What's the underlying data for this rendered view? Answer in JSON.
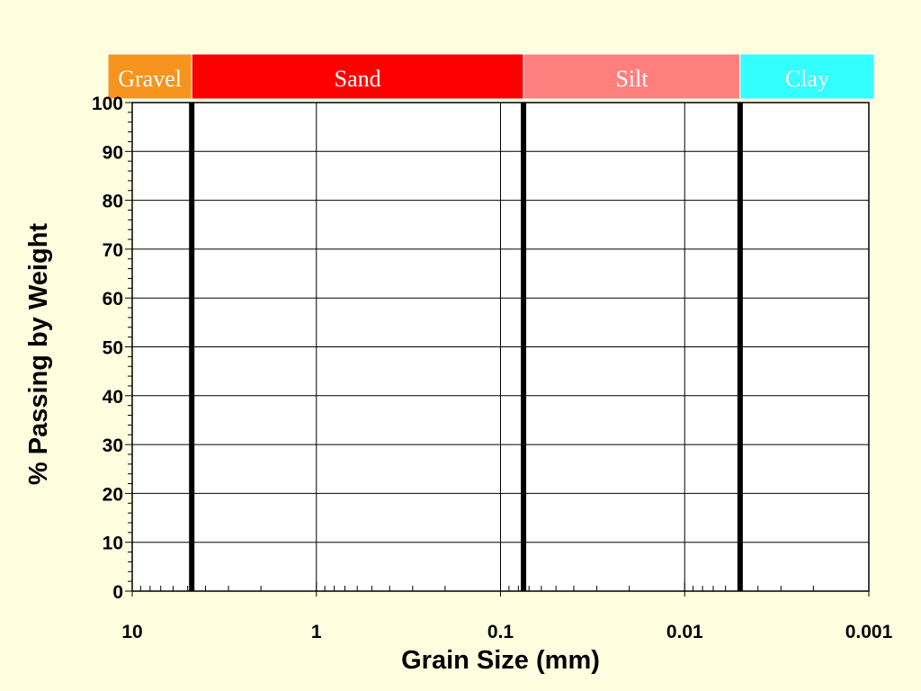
{
  "chart_data": {
    "type": "line",
    "title": "",
    "xlabel": "Grain Size (mm)",
    "ylabel": "% Passing by Weight",
    "x_scale": "log",
    "x_reversed": true,
    "xlim": [
      10,
      0.001
    ],
    "ylim": [
      0,
      100
    ],
    "grid": true,
    "x_ticks": [
      {
        "value": 10,
        "label": "10"
      },
      {
        "value": 1,
        "label": "1"
      },
      {
        "value": 0.1,
        "label": "0.1"
      },
      {
        "value": 0.01,
        "label": "0.01"
      },
      {
        "value": 0.001,
        "label": "0.001"
      }
    ],
    "y_ticks": [
      {
        "value": 0,
        "label": "0"
      },
      {
        "value": 10,
        "label": "10"
      },
      {
        "value": 20,
        "label": "20"
      },
      {
        "value": 30,
        "label": "30"
      },
      {
        "value": 40,
        "label": "40"
      },
      {
        "value": 50,
        "label": "50"
      },
      {
        "value": 60,
        "label": "60"
      },
      {
        "value": 70,
        "label": "70"
      },
      {
        "value": 80,
        "label": "80"
      },
      {
        "value": 90,
        "label": "90"
      },
      {
        "value": 100,
        "label": "100"
      }
    ],
    "boundaries": [
      4.75,
      0.075,
      0.005
    ],
    "bands": [
      {
        "label": "Gravel",
        "from": 10,
        "to": 4.75,
        "color": "#f7941d"
      },
      {
        "label": "Sand",
        "from": 4.75,
        "to": 0.075,
        "color": "#ff0000"
      },
      {
        "label": "Silt",
        "from": 0.075,
        "to": 0.005,
        "color": "#ff7f7f"
      },
      {
        "label": "Clay",
        "from": 0.005,
        "to": 0.001,
        "color": "#33ffff"
      }
    ],
    "series": []
  }
}
